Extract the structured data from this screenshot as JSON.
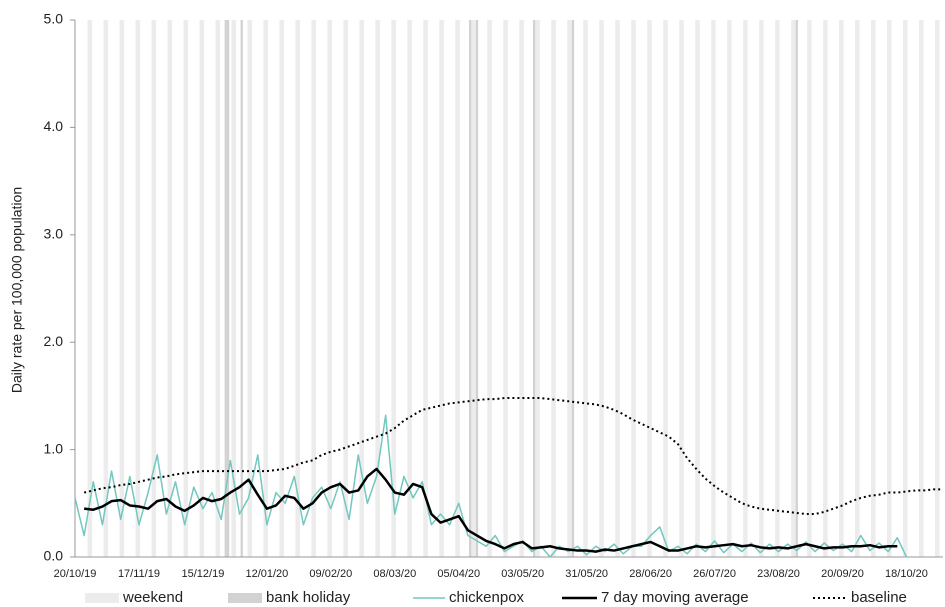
{
  "chart_data": {
    "type": "line",
    "ylabel": "Daily rate per 100,000 population",
    "categories": [
      "20/10/19",
      null,
      null,
      null,
      null,
      null,
      null,
      "17/11/19",
      null,
      null,
      null,
      null,
      null,
      null,
      "15/12/19",
      null,
      null,
      null,
      null,
      null,
      null,
      "12/01/20",
      null,
      null,
      null,
      null,
      null,
      null,
      "09/02/20",
      null,
      null,
      null,
      null,
      null,
      null,
      "08/03/20",
      null,
      null,
      null,
      null,
      null,
      null,
      "05/04/20",
      null,
      null,
      null,
      null,
      null,
      null,
      "03/05/20",
      null,
      null,
      null,
      null,
      null,
      null,
      "31/05/20",
      null,
      null,
      null,
      null,
      null,
      null,
      "28/06/20",
      null,
      null,
      null,
      null,
      null,
      null,
      "26/07/20",
      null,
      null,
      null,
      null,
      null,
      null,
      "23/08/20",
      null,
      null,
      null,
      null,
      null,
      null,
      "20/09/20",
      null,
      null,
      null,
      null,
      null,
      null,
      "18/10/20",
      null,
      null,
      null,
      null
    ],
    "series": [
      {
        "name": "chickenpox",
        "color": "#72c7bf",
        "width": 1.5,
        "line_style": "solid",
        "values": [
          0.55,
          0.2,
          0.7,
          0.3,
          0.8,
          0.35,
          0.75,
          0.3,
          0.6,
          0.95,
          0.4,
          0.7,
          0.3,
          0.65,
          0.45,
          0.6,
          0.35,
          0.9,
          0.4,
          0.55,
          0.95,
          0.3,
          0.6,
          0.5,
          0.75,
          0.3,
          0.55,
          0.65,
          0.45,
          0.7,
          0.35,
          0.95,
          0.5,
          0.75,
          1.32,
          0.4,
          0.75,
          0.55,
          0.7,
          0.3,
          0.4,
          0.3,
          0.5,
          0.2,
          0.15,
          0.1,
          0.2,
          0.05,
          0.1,
          0.15,
          0.05,
          0.1,
          0.0,
          0.1,
          0.05,
          0.1,
          0.02,
          0.1,
          0.05,
          0.12,
          0.03,
          0.1,
          0.1,
          0.2,
          0.28,
          0.05,
          0.1,
          0.03,
          0.12,
          0.05,
          0.15,
          0.04,
          0.12,
          0.05,
          0.13,
          0.04,
          0.12,
          0.05,
          0.12,
          0.06,
          0.14,
          0.05,
          0.13,
          0.06,
          0.12,
          0.05,
          0.2,
          0.06,
          0.13,
          0.05,
          0.18,
          0.0,
          null,
          null,
          null,
          null
        ]
      },
      {
        "name": "7 day moving average",
        "color": "#000000",
        "width": 2.5,
        "line_style": "solid",
        "values": [
          null,
          0.45,
          0.44,
          0.47,
          0.52,
          0.53,
          0.48,
          0.47,
          0.45,
          0.52,
          0.54,
          0.47,
          0.43,
          0.48,
          0.55,
          0.52,
          0.54,
          0.6,
          0.65,
          0.72,
          0.58,
          0.45,
          0.48,
          0.57,
          0.55,
          0.45,
          0.5,
          0.6,
          0.65,
          0.68,
          0.6,
          0.62,
          0.75,
          0.82,
          0.72,
          0.6,
          0.58,
          0.68,
          0.65,
          0.4,
          0.32,
          0.35,
          0.38,
          0.25,
          0.2,
          0.15,
          0.12,
          0.08,
          0.12,
          0.14,
          0.08,
          0.09,
          0.1,
          0.08,
          0.07,
          0.06,
          0.06,
          0.05,
          0.07,
          0.06,
          0.08,
          0.1,
          0.12,
          0.14,
          0.1,
          0.06,
          0.06,
          0.08,
          0.1,
          0.09,
          0.1,
          0.11,
          0.12,
          0.1,
          0.11,
          0.09,
          0.08,
          0.09,
          0.08,
          0.1,
          0.12,
          0.1,
          0.08,
          0.09,
          0.09,
          0.1,
          0.1,
          0.11,
          0.09,
          0.1,
          0.1,
          null,
          null,
          null,
          null,
          null
        ]
      },
      {
        "name": "baseline",
        "color": "#000000",
        "width": 2,
        "line_style": "dotted",
        "values": [
          null,
          0.6,
          0.62,
          0.64,
          0.65,
          0.67,
          0.68,
          0.7,
          0.72,
          0.74,
          0.75,
          0.77,
          0.78,
          0.79,
          0.8,
          0.8,
          0.8,
          0.8,
          0.8,
          0.8,
          0.8,
          0.8,
          0.81,
          0.82,
          0.85,
          0.88,
          0.9,
          0.95,
          0.98,
          1.0,
          1.03,
          1.06,
          1.09,
          1.12,
          1.15,
          1.2,
          1.27,
          1.32,
          1.37,
          1.39,
          1.41,
          1.43,
          1.44,
          1.45,
          1.46,
          1.47,
          1.47,
          1.48,
          1.48,
          1.48,
          1.48,
          1.48,
          1.47,
          1.46,
          1.45,
          1.44,
          1.43,
          1.42,
          1.4,
          1.37,
          1.33,
          1.28,
          1.24,
          1.2,
          1.16,
          1.12,
          1.05,
          0.92,
          0.82,
          0.73,
          0.66,
          0.6,
          0.55,
          0.5,
          0.47,
          0.45,
          0.44,
          0.43,
          0.42,
          0.41,
          0.4,
          0.4,
          0.42,
          0.45,
          0.48,
          0.52,
          0.55,
          0.57,
          0.58,
          0.6,
          0.6,
          0.61,
          0.62,
          0.62,
          0.63,
          0.63
        ]
      }
    ],
    "bands": [
      {
        "name": "weekend",
        "color": "#ececec"
      },
      {
        "name": "bank holiday",
        "color": "#d2d2d2"
      }
    ],
    "ylim": [
      0,
      5
    ],
    "yticks": [
      {
        "value": 0,
        "label": "0.0"
      },
      {
        "value": 1,
        "label": "1.0"
      },
      {
        "value": 2,
        "label": "2.0"
      },
      {
        "value": 3,
        "label": "3.0"
      },
      {
        "value": 4,
        "label": "4.0"
      },
      {
        "value": 5,
        "label": "5.0"
      }
    ]
  }
}
